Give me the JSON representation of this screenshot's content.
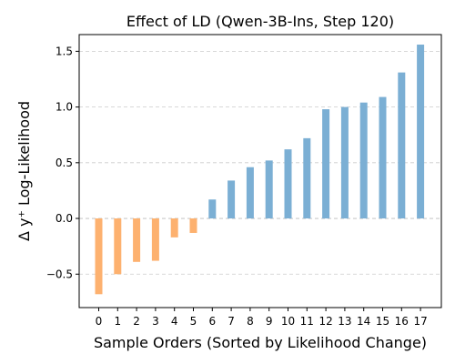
{
  "chart_data": {
    "type": "bar",
    "title": "Effect of LD (Qwen-3B-Ins, Step 120)",
    "xlabel": "Sample Orders (Sorted by Likelihood Change)",
    "ylabel": "Δ y⁺ Log-Likelihood",
    "categories": [
      "0",
      "1",
      "2",
      "3",
      "4",
      "5",
      "6",
      "7",
      "8",
      "9",
      "10",
      "11",
      "12",
      "13",
      "14",
      "15",
      "16",
      "17"
    ],
    "values": [
      -0.68,
      -0.5,
      -0.39,
      -0.38,
      -0.17,
      -0.13,
      0.17,
      0.34,
      0.46,
      0.52,
      0.62,
      0.72,
      0.98,
      1.0,
      1.04,
      1.09,
      1.31,
      1.56
    ],
    "ylim": [
      -0.8,
      1.65
    ],
    "yticks": [
      -0.5,
      0.0,
      0.5,
      1.0,
      1.5
    ],
    "ytick_labels": [
      "−0.5",
      "0.0",
      "0.5",
      "1.0",
      "1.5"
    ],
    "grid": "horizontal dashed",
    "colors": {
      "negative": "#fdb16f",
      "positive": "#7bafd4",
      "grid": "#cccccc",
      "zero_line": "#bbbbbb",
      "axis": "#000000"
    }
  }
}
